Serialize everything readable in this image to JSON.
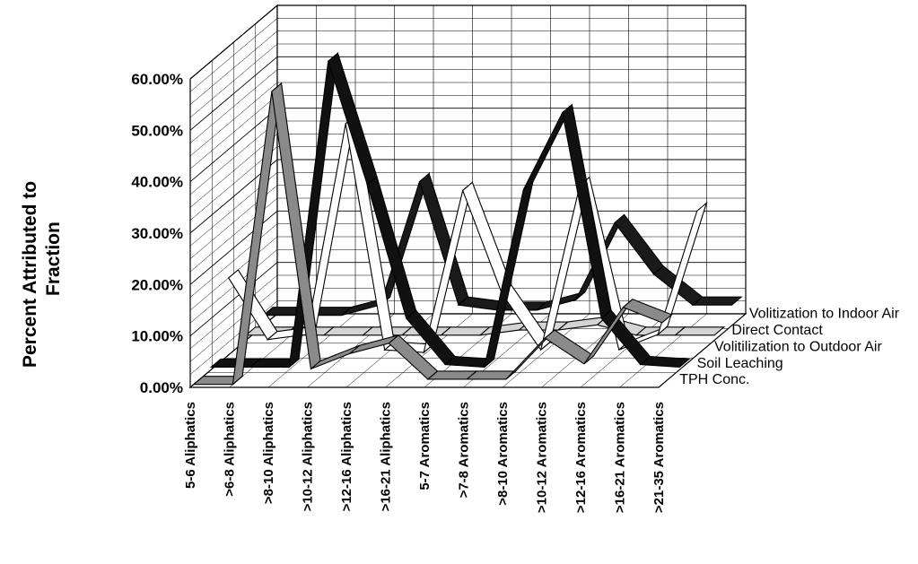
{
  "chart_data": {
    "type": "line",
    "subtype": "3d-ribbon",
    "title": "",
    "xlabel": "",
    "ylabel": "Percent Attributed to Fraction",
    "ylabel_lines": [
      "Percent Attributed to",
      "Fraction"
    ],
    "ylim": [
      0,
      60
    ],
    "y_ticks": [
      "0.00%",
      "10.00%",
      "20.00%",
      "30.00%",
      "40.00%",
      "50.00%",
      "60.00%"
    ],
    "grid": true,
    "categories": [
      "5-6 Aliphatics",
      ">6-8 Aliphatics",
      ">8-10 Aliphatics",
      ">10-12 Aliphatics",
      ">12-16 Aliphatics",
      ">16-21 Aliphatics",
      "5-7 Aromatics",
      ">7-8 Aromatics",
      ">8-10 Aromatics",
      ">10-12 Aromatics",
      ">12-16 Aromatics",
      ">16-21 Aromatics",
      ">21-35 Aromatics"
    ],
    "series": [
      {
        "name": "TPH Conc.",
        "color": "#8a8a8a",
        "values": [
          0,
          0,
          57,
          3,
          6,
          8,
          1,
          1,
          1,
          9,
          4,
          15,
          12
        ]
      },
      {
        "name": "Soil Leaching",
        "color": "#111111",
        "values": [
          0.5,
          0.5,
          0.5,
          60,
          36,
          10,
          1,
          0.5,
          35,
          50,
          10,
          1,
          0.5
        ]
      },
      {
        "name": "Volitilization to Outdoor Air",
        "color": "#ffffff",
        "values": [
          15,
          3,
          4,
          45,
          1,
          0.5,
          32,
          12,
          1,
          33,
          1,
          4,
          28
        ]
      },
      {
        "name": "Direct Contact",
        "color": "#d4d4d4",
        "values": [
          1,
          1,
          1,
          1,
          1,
          1,
          1,
          2,
          2,
          3,
          1,
          1,
          1
        ]
      },
      {
        "name": "Volitization to Indoor Air",
        "color": "#1a1a1a",
        "values": [
          2,
          2,
          2,
          4,
          28,
          4,
          3,
          3,
          5,
          20,
          10,
          4,
          4
        ]
      }
    ],
    "legend": "series labels at right end of each ribbon"
  }
}
